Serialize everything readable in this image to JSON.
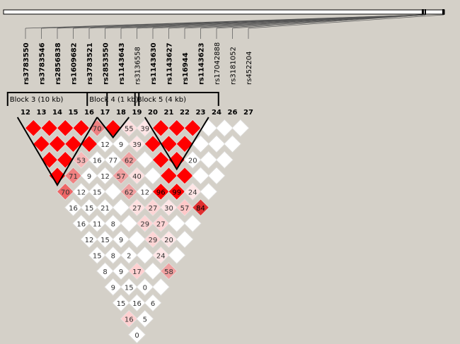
{
  "markers": [
    {
      "num": "12",
      "name": "rs3783550",
      "bold": true
    },
    {
      "num": "13",
      "name": "rs3783546",
      "bold": true
    },
    {
      "num": "14",
      "name": "rs2856838",
      "bold": true
    },
    {
      "num": "15",
      "name": "rs1609682",
      "bold": true
    },
    {
      "num": "16",
      "name": "rs3783521",
      "bold": true
    },
    {
      "num": "17",
      "name": "rs2853550",
      "bold": true
    },
    {
      "num": "18",
      "name": "rs1143643",
      "bold": true
    },
    {
      "num": "19",
      "name": "rs3136558",
      "bold": false
    },
    {
      "num": "20",
      "name": "rs1143630",
      "bold": true
    },
    {
      "num": "21",
      "name": "rs1143627",
      "bold": true
    },
    {
      "num": "22",
      "name": "rs16944",
      "bold": true
    },
    {
      "num": "23",
      "name": "rs1143623",
      "bold": true
    },
    {
      "num": "24",
      "name": "rs17042888",
      "bold": false
    },
    {
      "num": "26",
      "name": "rs3181052",
      "bold": false
    },
    {
      "num": "27",
      "name": "rs452204",
      "bold": false
    }
  ],
  "blocks": [
    {
      "label": "Block 3 (10 kb)",
      "start": 0,
      "end": 4
    },
    {
      "label": "Block 4 (1 kb)",
      "start": 5,
      "end": 6
    },
    {
      "label": "Block 5 (4 kb)",
      "start": 8,
      "end": 11
    }
  ],
  "ld_matrix": [
    [
      null,
      "",
      "",
      "",
      "",
      "70",
      "",
      "16",
      "",
      "",
      "",
      "",
      "",
      "",
      ""
    ],
    [
      null,
      null,
      "",
      "",
      "",
      "",
      "",
      "",
      "",
      "",
      "",
      "",
      "",
      "",
      ""
    ],
    [
      null,
      null,
      null,
      "",
      "",
      "",
      "9",
      "",
      "",
      "",
      "",
      "",
      "",
      "",
      ""
    ],
    [
      null,
      null,
      null,
      null,
      "",
      "",
      "16",
      "12",
      "",
      "",
      "",
      "",
      "",
      "",
      ""
    ],
    [
      null,
      null,
      null,
      null,
      null,
      "70",
      "12",
      "77",
      "57",
      "62",
      "27",
      "29",
      "29",
      "24",
      "58"
    ],
    [
      null,
      null,
      null,
      null,
      null,
      null,
      "",
      "9",
      "62",
      "40",
      "12",
      "27",
      "27",
      "20",
      ""
    ],
    [
      null,
      null,
      null,
      null,
      null,
      null,
      null,
      "55",
      "39",
      "",
      "",
      "96",
      "30",
      "",
      ""
    ],
    [
      null,
      null,
      null,
      null,
      null,
      null,
      null,
      null,
      "39",
      "",
      "",
      "",
      "99",
      "57",
      ""
    ],
    [
      null,
      null,
      null,
      null,
      null,
      null,
      null,
      null,
      null,
      "",
      "",
      "",
      "",
      "24",
      "84"
    ],
    [
      null,
      null,
      null,
      null,
      null,
      null,
      null,
      null,
      null,
      null,
      "",
      "",
      "20",
      "",
      ""
    ],
    [
      null,
      null,
      null,
      null,
      null,
      null,
      null,
      null,
      null,
      null,
      null,
      "",
      "",
      "",
      ""
    ],
    [
      null,
      null,
      null,
      null,
      null,
      null,
      null,
      null,
      null,
      null,
      null,
      null,
      "",
      "",
      ""
    ],
    [
      null,
      null,
      null,
      null,
      null,
      null,
      null,
      null,
      null,
      null,
      null,
      null,
      null,
      "",
      ""
    ],
    [
      null,
      null,
      null,
      null,
      null,
      null,
      null,
      null,
      null,
      null,
      null,
      null,
      null,
      null,
      ""
    ],
    [
      null,
      null,
      null,
      null,
      null,
      null,
      null,
      null,
      null,
      null,
      null,
      null,
      null,
      null,
      null
    ]
  ],
  "ld_color": [
    [
      null,
      "#ff0000",
      "#ff0000",
      "#ff0000",
      "#ff0000",
      "#ee8080",
      "#ffffff",
      "#ffffff",
      "#ffffff",
      "#ffffff",
      "#ffffff",
      "#ffffff",
      "#ffffff",
      "#ffffff",
      "#ffffff"
    ],
    [
      null,
      null,
      "#ff0000",
      "#ff0000",
      "#ff0000",
      "#ee6666",
      "#ffffff",
      "#ffffff",
      "#ffffff",
      "#ffffff",
      "#ffffff",
      "#ffffff",
      "#ffffff",
      "#ffffff",
      "#ffffff"
    ],
    [
      null,
      null,
      null,
      "#ff0000",
      "#ff0000",
      "#ff0000",
      "#ffffff",
      "#ffffff",
      "#ffffff",
      "#ffffff",
      "#ffffff",
      "#ffffff",
      "#ffffff",
      "#ffffff",
      "#ffffff"
    ],
    [
      null,
      null,
      null,
      null,
      "#ff0000",
      "#ff0000",
      "#ffffff",
      "#ffffff",
      "#ffffff",
      "#ffffff",
      "#ffffff",
      "#ffffff",
      "#ffffff",
      "#ffffff",
      "#ffffff"
    ],
    [
      null,
      null,
      null,
      null,
      null,
      "#ee8080",
      "#ffffff",
      "#ffffff",
      "#f0a0a0",
      "#f0a0a0",
      "#ffe0e0",
      "#fdd5d5",
      "#fdd5d5",
      "#ffe6e6",
      "#f0a0a0"
    ],
    [
      null,
      null,
      null,
      null,
      null,
      null,
      "#ff0000",
      "#ffffff",
      "#f0a0a0",
      "#ffe0e0",
      "#ffffff",
      "#fdd5d5",
      "#fdd5d5",
      "#ffe6e6",
      "#ffffff"
    ],
    [
      null,
      null,
      null,
      null,
      null,
      null,
      null,
      "#ffe0e0",
      "#ffe6e6",
      "#ffffff",
      "#ffffff",
      "#ff0000",
      "#ffe6e6",
      "#ffffff",
      "#ffffff"
    ],
    [
      null,
      null,
      null,
      null,
      null,
      null,
      null,
      null,
      "#ffe6e6",
      "#ff0000",
      "#ff0000",
      "#ff0000",
      "#ff0000",
      "#ffc8c8",
      "#ffffff"
    ],
    [
      null,
      null,
      null,
      null,
      null,
      null,
      null,
      null,
      null,
      "#ff0000",
      "#ff0000",
      "#ff0000",
      "#ff0000",
      "#ffe6e6",
      "#e03030"
    ],
    [
      null,
      null,
      null,
      null,
      null,
      null,
      null,
      null,
      null,
      null,
      "#ff0000",
      "#ff0000",
      "#ffffff",
      "#ffffff",
      "#ffffff"
    ],
    [
      null,
      null,
      null,
      null,
      null,
      null,
      null,
      null,
      null,
      null,
      null,
      "#ff0000",
      "#ffffff",
      "#ffffff",
      "#ffffff"
    ],
    [
      null,
      null,
      null,
      null,
      null,
      null,
      null,
      null,
      null,
      null,
      null,
      null,
      "#ffffff",
      "#ffffff",
      "#ffffff"
    ],
    [
      null,
      null,
      null,
      null,
      null,
      null,
      null,
      null,
      null,
      null,
      null,
      null,
      null,
      "#ffffff",
      "#ffffff"
    ],
    [
      null,
      null,
      null,
      null,
      null,
      null,
      null,
      null,
      null,
      null,
      null,
      null,
      null,
      null,
      "#ffffff"
    ],
    [
      null,
      null,
      null,
      null,
      null,
      null,
      null,
      null,
      null,
      null,
      null,
      null,
      null,
      null,
      null
    ]
  ],
  "extra_cells": [
    {
      "i": 0,
      "j": 6,
      "value": "16",
      "color": "#ffffff"
    },
    {
      "i": 1,
      "j": 6,
      "value": "12",
      "color": "#ffffff"
    },
    {
      "i": 1,
      "j": 7,
      "value": "15",
      "color": "#ffffff"
    },
    {
      "i": 2,
      "j": 7,
      "value": "15",
      "color": "#ffffff"
    },
    {
      "i": 0,
      "j": 5,
      "value": "70",
      "color": "#ee6666"
    },
    {
      "i": 1,
      "j": 5,
      "value": "71",
      "color": "#f08080"
    },
    {
      "i": 2,
      "j": 5,
      "value": "53",
      "color": "#f8b8b8"
    },
    {
      "i": 0,
      "j": 7,
      "value": "16",
      "color": "#ffffff"
    },
    {
      "i": 0,
      "j": 8,
      "value": "12",
      "color": "#ffffff"
    },
    {
      "i": 0,
      "j": 9,
      "value": "15",
      "color": "#ffffff"
    },
    {
      "i": 0,
      "j": 10,
      "value": "8",
      "color": "#ffffff"
    },
    {
      "i": 0,
      "j": 11,
      "value": "9",
      "color": "#ffffff"
    },
    {
      "i": 0,
      "j": 12,
      "value": "15",
      "color": "#ffffff"
    },
    {
      "i": 0,
      "j": 13,
      "value": "16",
      "color": "#ffd0d0"
    },
    {
      "i": 0,
      "j": 14,
      "value": "0",
      "color": "#ffffff"
    },
    {
      "i": 1,
      "j": 8,
      "value": "11",
      "color": "#ffffff"
    },
    {
      "i": 1,
      "j": 9,
      "value": "15",
      "color": "#ffffff"
    },
    {
      "i": 1,
      "j": 10,
      "value": "8",
      "color": "#ffffff"
    },
    {
      "i": 1,
      "j": 11,
      "value": "9",
      "color": "#ffffff"
    },
    {
      "i": 1,
      "j": 12,
      "value": "15",
      "color": "#ffffff"
    },
    {
      "i": 1,
      "j": 13,
      "value": "16",
      "color": "#ffffff"
    },
    {
      "i": 1,
      "j": 14,
      "value": "5",
      "color": "#ffffff"
    },
    {
      "i": 2,
      "j": 8,
      "value": "21",
      "color": "#ffffff"
    },
    {
      "i": 2,
      "j": 9,
      "value": "8",
      "color": "#ffffff"
    },
    {
      "i": 2,
      "j": 10,
      "value": "9",
      "color": "#ffffff"
    },
    {
      "i": 2,
      "j": 11,
      "value": "2",
      "color": "#ffffff"
    },
    {
      "i": 2,
      "j": 12,
      "value": "17",
      "color": "#ffd0d0"
    },
    {
      "i": 2,
      "j": 13,
      "value": "0",
      "color": "#ffffff"
    },
    {
      "i": 2,
      "j": 14,
      "value": "6",
      "color": "#ffffff"
    }
  ]
}
